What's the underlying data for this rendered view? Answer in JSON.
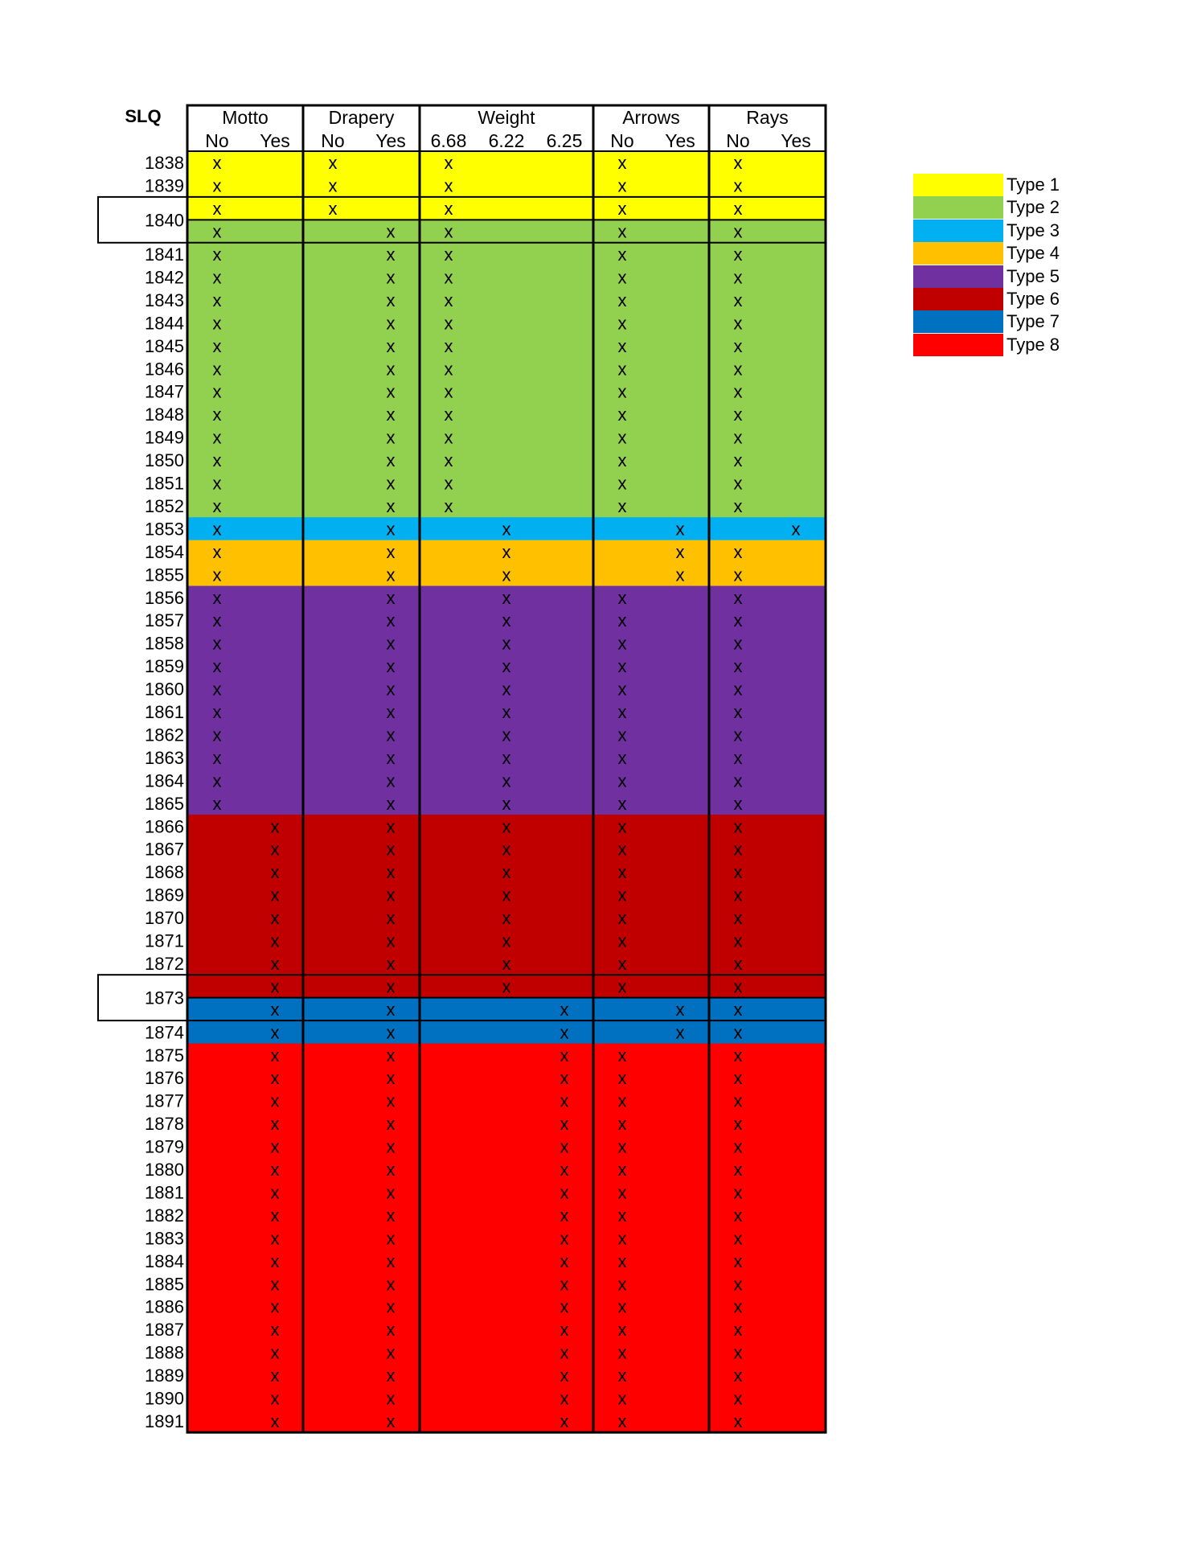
{
  "table": {
    "corner_label": "SLQ",
    "groups": [
      {
        "label": "Motto",
        "sub": [
          "No",
          "Yes"
        ]
      },
      {
        "label": "Drapery",
        "sub": [
          "No",
          "Yes"
        ]
      },
      {
        "label": "Weight",
        "sub": [
          "6.68",
          "6.22",
          "6.25"
        ]
      },
      {
        "label": "Arrows",
        "sub": [
          "No",
          "Yes"
        ]
      },
      {
        "label": "Rays",
        "sub": [
          "No",
          "Yes"
        ]
      }
    ],
    "mark": "x",
    "boxed_years": [
      "1840",
      "1873"
    ],
    "rows": [
      {
        "year": "1838",
        "type": 1,
        "marks": [
          0,
          2,
          4,
          7,
          9
        ]
      },
      {
        "year": "1839",
        "type": 1,
        "marks": [
          0,
          2,
          4,
          7,
          9
        ]
      },
      {
        "year": "1840",
        "type": 1,
        "marks": [
          0,
          2,
          4,
          7,
          9
        ]
      },
      {
        "year": "",
        "type": 2,
        "marks": [
          0,
          3,
          4,
          7,
          9
        ]
      },
      {
        "year": "1841",
        "type": 2,
        "marks": [
          0,
          3,
          4,
          7,
          9
        ]
      },
      {
        "year": "1842",
        "type": 2,
        "marks": [
          0,
          3,
          4,
          7,
          9
        ]
      },
      {
        "year": "1843",
        "type": 2,
        "marks": [
          0,
          3,
          4,
          7,
          9
        ]
      },
      {
        "year": "1844",
        "type": 2,
        "marks": [
          0,
          3,
          4,
          7,
          9
        ]
      },
      {
        "year": "1845",
        "type": 2,
        "marks": [
          0,
          3,
          4,
          7,
          9
        ]
      },
      {
        "year": "1846",
        "type": 2,
        "marks": [
          0,
          3,
          4,
          7,
          9
        ]
      },
      {
        "year": "1847",
        "type": 2,
        "marks": [
          0,
          3,
          4,
          7,
          9
        ]
      },
      {
        "year": "1848",
        "type": 2,
        "marks": [
          0,
          3,
          4,
          7,
          9
        ]
      },
      {
        "year": "1849",
        "type": 2,
        "marks": [
          0,
          3,
          4,
          7,
          9
        ]
      },
      {
        "year": "1850",
        "type": 2,
        "marks": [
          0,
          3,
          4,
          7,
          9
        ]
      },
      {
        "year": "1851",
        "type": 2,
        "marks": [
          0,
          3,
          4,
          7,
          9
        ]
      },
      {
        "year": "1852",
        "type": 2,
        "marks": [
          0,
          3,
          4,
          7,
          9
        ]
      },
      {
        "year": "1853",
        "type": 3,
        "marks": [
          0,
          3,
          5,
          8,
          10
        ]
      },
      {
        "year": "1854",
        "type": 4,
        "marks": [
          0,
          3,
          5,
          8,
          9
        ]
      },
      {
        "year": "1855",
        "type": 4,
        "marks": [
          0,
          3,
          5,
          8,
          9
        ]
      },
      {
        "year": "1856",
        "type": 5,
        "marks": [
          0,
          3,
          5,
          7,
          9
        ]
      },
      {
        "year": "1857",
        "type": 5,
        "marks": [
          0,
          3,
          5,
          7,
          9
        ]
      },
      {
        "year": "1858",
        "type": 5,
        "marks": [
          0,
          3,
          5,
          7,
          9
        ]
      },
      {
        "year": "1859",
        "type": 5,
        "marks": [
          0,
          3,
          5,
          7,
          9
        ]
      },
      {
        "year": "1860",
        "type": 5,
        "marks": [
          0,
          3,
          5,
          7,
          9
        ]
      },
      {
        "year": "1861",
        "type": 5,
        "marks": [
          0,
          3,
          5,
          7,
          9
        ]
      },
      {
        "year": "1862",
        "type": 5,
        "marks": [
          0,
          3,
          5,
          7,
          9
        ]
      },
      {
        "year": "1863",
        "type": 5,
        "marks": [
          0,
          3,
          5,
          7,
          9
        ]
      },
      {
        "year": "1864",
        "type": 5,
        "marks": [
          0,
          3,
          5,
          7,
          9
        ]
      },
      {
        "year": "1865",
        "type": 5,
        "marks": [
          0,
          3,
          5,
          7,
          9
        ]
      },
      {
        "year": "1866",
        "type": 6,
        "marks": [
          1,
          3,
          5,
          7,
          9
        ]
      },
      {
        "year": "1867",
        "type": 6,
        "marks": [
          1,
          3,
          5,
          7,
          9
        ]
      },
      {
        "year": "1868",
        "type": 6,
        "marks": [
          1,
          3,
          5,
          7,
          9
        ]
      },
      {
        "year": "1869",
        "type": 6,
        "marks": [
          1,
          3,
          5,
          7,
          9
        ]
      },
      {
        "year": "1870",
        "type": 6,
        "marks": [
          1,
          3,
          5,
          7,
          9
        ]
      },
      {
        "year": "1871",
        "type": 6,
        "marks": [
          1,
          3,
          5,
          7,
          9
        ]
      },
      {
        "year": "1872",
        "type": 6,
        "marks": [
          1,
          3,
          5,
          7,
          9
        ]
      },
      {
        "year": "1873",
        "type": 6,
        "marks": [
          1,
          3,
          5,
          7,
          9
        ]
      },
      {
        "year": "",
        "type": 7,
        "marks": [
          1,
          3,
          6,
          8,
          9
        ]
      },
      {
        "year": "1874",
        "type": 7,
        "marks": [
          1,
          3,
          6,
          8,
          9
        ]
      },
      {
        "year": "1875",
        "type": 8,
        "marks": [
          1,
          3,
          6,
          7,
          9
        ]
      },
      {
        "year": "1876",
        "type": 8,
        "marks": [
          1,
          3,
          6,
          7,
          9
        ]
      },
      {
        "year": "1877",
        "type": 8,
        "marks": [
          1,
          3,
          6,
          7,
          9
        ]
      },
      {
        "year": "1878",
        "type": 8,
        "marks": [
          1,
          3,
          6,
          7,
          9
        ]
      },
      {
        "year": "1879",
        "type": 8,
        "marks": [
          1,
          3,
          6,
          7,
          9
        ]
      },
      {
        "year": "1880",
        "type": 8,
        "marks": [
          1,
          3,
          6,
          7,
          9
        ]
      },
      {
        "year": "1881",
        "type": 8,
        "marks": [
          1,
          3,
          6,
          7,
          9
        ]
      },
      {
        "year": "1882",
        "type": 8,
        "marks": [
          1,
          3,
          6,
          7,
          9
        ]
      },
      {
        "year": "1883",
        "type": 8,
        "marks": [
          1,
          3,
          6,
          7,
          9
        ]
      },
      {
        "year": "1884",
        "type": 8,
        "marks": [
          1,
          3,
          6,
          7,
          9
        ]
      },
      {
        "year": "1885",
        "type": 8,
        "marks": [
          1,
          3,
          6,
          7,
          9
        ]
      },
      {
        "year": "1886",
        "type": 8,
        "marks": [
          1,
          3,
          6,
          7,
          9
        ]
      },
      {
        "year": "1887",
        "type": 8,
        "marks": [
          1,
          3,
          6,
          7,
          9
        ]
      },
      {
        "year": "1888",
        "type": 8,
        "marks": [
          1,
          3,
          6,
          7,
          9
        ]
      },
      {
        "year": "1889",
        "type": 8,
        "marks": [
          1,
          3,
          6,
          7,
          9
        ]
      },
      {
        "year": "1890",
        "type": 8,
        "marks": [
          1,
          3,
          6,
          7,
          9
        ]
      },
      {
        "year": "1891",
        "type": 8,
        "marks": [
          1,
          3,
          6,
          7,
          9
        ]
      }
    ]
  },
  "types": [
    {
      "id": 1,
      "label": "Type 1",
      "color": "#ffff00"
    },
    {
      "id": 2,
      "label": "Type 2",
      "color": "#92d050"
    },
    {
      "id": 3,
      "label": "Type 3",
      "color": "#00b0f0"
    },
    {
      "id": 4,
      "label": "Type 4",
      "color": "#ffc000"
    },
    {
      "id": 5,
      "label": "Type 5",
      "color": "#7030a0"
    },
    {
      "id": 6,
      "label": "Type 6",
      "color": "#c00000"
    },
    {
      "id": 7,
      "label": "Type 7",
      "color": "#0070c0"
    },
    {
      "id": 8,
      "label": "Type 8",
      "color": "#ff0000"
    }
  ]
}
